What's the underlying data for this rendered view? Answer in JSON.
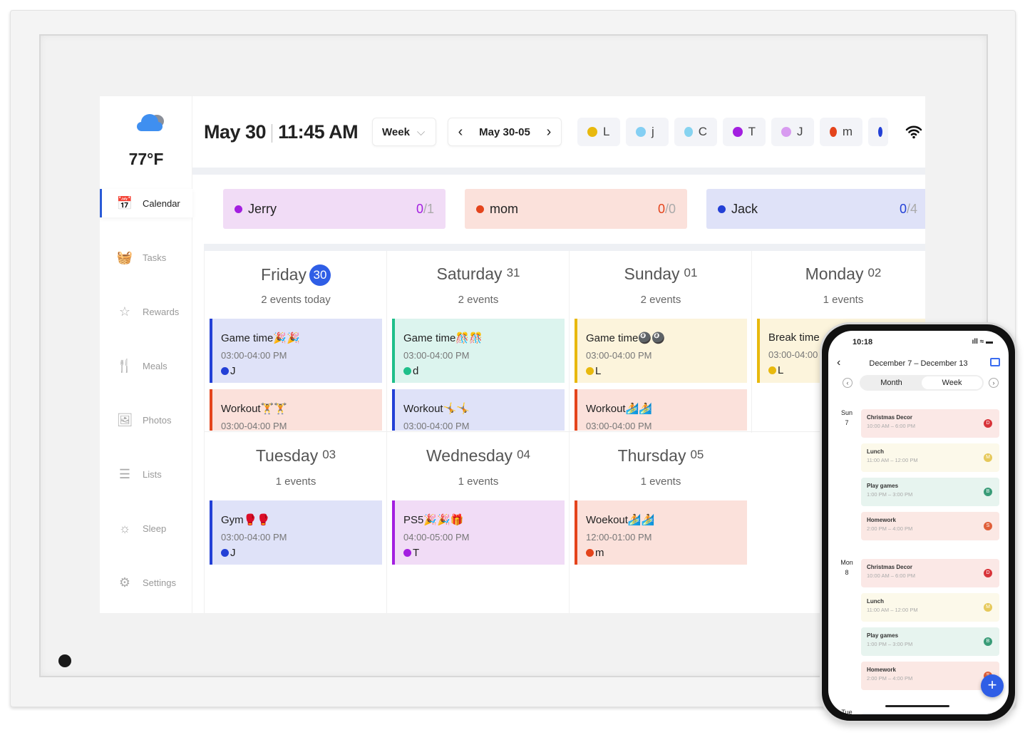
{
  "weather": {
    "icon": "cloud-icon",
    "temp": "77°F"
  },
  "sidebar": {
    "items": [
      {
        "label": "Calendar",
        "icon": "calendar-icon",
        "glyph": "📅",
        "active": true
      },
      {
        "label": "Tasks",
        "icon": "tasks-icon",
        "glyph": "🧺"
      },
      {
        "label": "Rewards",
        "icon": "star-icon",
        "glyph": "☆"
      },
      {
        "label": "Meals",
        "icon": "utensils-icon",
        "glyph": "🍴"
      },
      {
        "label": "Photos",
        "icon": "photos-icon",
        "glyph": "🖼"
      },
      {
        "label": "Lists",
        "icon": "list-icon",
        "glyph": "☰"
      },
      {
        "label": "Sleep",
        "icon": "sun-icon",
        "glyph": "☼"
      },
      {
        "label": "Settings",
        "icon": "gear-icon",
        "glyph": "⚙"
      }
    ]
  },
  "header": {
    "date": "May 30",
    "time": "11:45 AM",
    "view": "Week",
    "range": "May 30-05"
  },
  "members": [
    {
      "label": "L",
      "color": "#e8b90e"
    },
    {
      "label": "j",
      "color": "#84cff3"
    },
    {
      "label": "C",
      "color": "#86d3f0"
    },
    {
      "label": "T",
      "color": "#a31fe0"
    },
    {
      "label": "J",
      "color": "#d89bf0"
    },
    {
      "label": "m",
      "color": "#e4441c"
    },
    {
      "label": "",
      "color": "#2340d6"
    }
  ],
  "profiles": [
    {
      "name": "Jerry",
      "done": "0",
      "total": "/1",
      "color": "#a31fe0",
      "bg": "#f1dcf6"
    },
    {
      "name": "mom",
      "done": "0",
      "total": "/0",
      "color": "#e4441c",
      "bg": "#fbe1db"
    },
    {
      "name": "Jack",
      "done": "0",
      "total": "/4",
      "color": "#2340d6",
      "bg": "#dfe2f8"
    }
  ],
  "days": [
    {
      "name": "Friday",
      "num": "30",
      "today": true,
      "count": "2 events today",
      "events": [
        {
          "title": "Game time🎉🎉",
          "time": "03:00-04:00 PM",
          "who": "J",
          "color": "#2340d6",
          "bg": "#dfe2f8"
        },
        {
          "title": "Workout🏋🏋",
          "time": "03:00-04:00 PM",
          "who": "",
          "color": "#e4441c",
          "bg": "#fbe1db"
        }
      ]
    },
    {
      "name": "Saturday",
      "num": "31",
      "count": "2 events",
      "events": [
        {
          "title": "Game time🎊🎊",
          "time": "03:00-04:00 PM",
          "who": "d",
          "color": "#1fbf8a",
          "bg": "#dcf4ee"
        },
        {
          "title": "Workout🤸🤸",
          "time": "03:00-04:00 PM",
          "who": "",
          "color": "#2340d6",
          "bg": "#dfe2f8"
        }
      ]
    },
    {
      "name": "Sunday",
      "num": "01",
      "count": "2 events",
      "events": [
        {
          "title": "Game time🎱🎱",
          "time": "03:00-04:00 PM",
          "who": "L",
          "color": "#e8b90e",
          "bg": "#fcf4dc"
        },
        {
          "title": "Workout🏄🏄",
          "time": "03:00-04:00 PM",
          "who": "",
          "color": "#e4441c",
          "bg": "#fbe1db"
        }
      ]
    },
    {
      "name": "Monday",
      "num": "02",
      "count": "1 events",
      "events": [
        {
          "title": "Break time",
          "time": "03:00-04:00",
          "who": "L",
          "color": "#e8b90e",
          "bg": "#fcf4dc"
        }
      ]
    },
    {
      "name": "Tuesday",
      "num": "03",
      "count": "1 events",
      "events": [
        {
          "title": "Gym🥊🥊",
          "time": "03:00-04:00 PM",
          "who": "J",
          "color": "#2340d6",
          "bg": "#dfe2f8"
        }
      ]
    },
    {
      "name": "Wednesday",
      "num": "04",
      "count": "1 events",
      "events": [
        {
          "title": "PS5🎉🎉🎁",
          "time": "04:00-05:00 PM",
          "who": "T",
          "color": "#a31fe0",
          "bg": "#f1dcf6"
        }
      ]
    },
    {
      "name": "Thursday",
      "num": "05",
      "count": "1 events",
      "events": [
        {
          "title": "Woekout🏄🏄",
          "time": "12:00-01:00 PM",
          "who": "m",
          "color": "#e4441c",
          "bg": "#fbe1db"
        }
      ]
    }
  ],
  "phone": {
    "clock": "10:18",
    "title": "December 7 – December 13",
    "tabs": [
      "Month",
      "Week"
    ],
    "active_tab": "Week",
    "groups": [
      {
        "dow": "Sun",
        "date": "7",
        "events": [
          {
            "name": "Christmas Decor",
            "time": "10:00 AM – 6:00 PM",
            "badge": "D",
            "badge_color": "#d8343a",
            "bg": "#fbe8e6"
          },
          {
            "name": "Lunch",
            "time": "11:00 AM – 12:00 PM",
            "badge": "M",
            "badge_color": "#e6c95a",
            "bg": "#fcf9ea"
          },
          {
            "name": "Play games",
            "time": "1:00 PM – 3:00 PM",
            "badge": "B",
            "badge_color": "#3a9c78",
            "bg": "#e7f4ef"
          },
          {
            "name": "Homework",
            "time": "2:00 PM – 4:00 PM",
            "badge": "S",
            "badge_color": "#e0603a",
            "bg": "#fbe8e4"
          }
        ]
      },
      {
        "dow": "Mon",
        "date": "8",
        "events": [
          {
            "name": "Christmas Decor",
            "time": "10:00 AM – 6:00 PM",
            "badge": "D",
            "badge_color": "#d8343a",
            "bg": "#fbe8e6"
          },
          {
            "name": "Lunch",
            "time": "11:00 AM – 12:00 PM",
            "badge": "M",
            "badge_color": "#e6c95a",
            "bg": "#fcf9ea"
          },
          {
            "name": "Play games",
            "time": "1:00 PM – 3:00 PM",
            "badge": "B",
            "badge_color": "#3a9c78",
            "bg": "#e7f4ef"
          },
          {
            "name": "Homework",
            "time": "2:00 PM – 4:00 PM",
            "badge": "S",
            "badge_color": "#e0603a",
            "bg": "#fbe8e4"
          }
        ]
      },
      {
        "dow": "Tue",
        "date": "",
        "events": []
      }
    ],
    "fab": "+"
  }
}
